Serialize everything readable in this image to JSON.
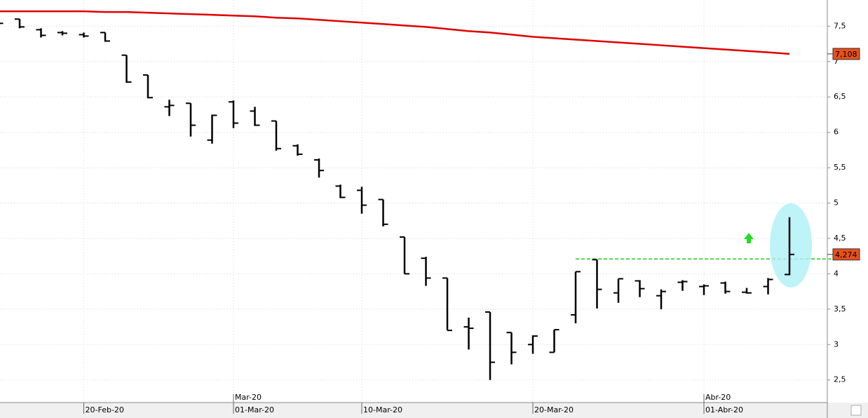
{
  "chart_data": {
    "type": "ohlc",
    "categories": [
      null,
      null,
      null,
      null,
      "20-Feb-20",
      null,
      null,
      null,
      null,
      null,
      null,
      "01-Mar-20",
      null,
      null,
      null,
      null,
      null,
      "10-Mar-20",
      null,
      null,
      null,
      null,
      null,
      null,
      null,
      "20-Mar-20",
      null,
      null,
      null,
      null,
      null,
      null,
      null,
      "01-Abr-20",
      null,
      null,
      null,
      null
    ],
    "months": [
      null,
      null,
      null,
      null,
      null,
      null,
      null,
      null,
      null,
      null,
      null,
      "Mar-20",
      null,
      null,
      null,
      null,
      null,
      null,
      null,
      null,
      null,
      null,
      null,
      null,
      null,
      null,
      null,
      null,
      null,
      null,
      null,
      null,
      null,
      "Abr-20",
      null,
      null,
      null,
      null
    ],
    "open": [
      7.55,
      7.6,
      7.45,
      7.41,
      7.38,
      7.41,
      7.09,
      6.81,
      6.36,
      6.41,
      5.89,
      6.43,
      6.3,
      6.16,
      5.81,
      5.61,
      5.24,
      5.18,
      5.05,
      4.52,
      4.22,
      3.94,
      3.25,
      3.46,
      3.17,
      3.0,
      2.89,
      3.42,
      4.2,
      3.73,
      3.9,
      3.69,
      3.88,
      3.82,
      3.87,
      3.74,
      3.82,
      3.99
    ],
    "high": [
      7.58,
      7.6,
      7.47,
      7.43,
      7.41,
      7.41,
      7.09,
      6.81,
      6.46,
      6.41,
      6.25,
      6.45,
      6.36,
      6.16,
      5.83,
      5.63,
      5.26,
      5.23,
      5.05,
      4.52,
      4.24,
      3.94,
      3.38,
      3.46,
      3.17,
      3.13,
      3.21,
      4.03,
      4.2,
      3.93,
      3.91,
      3.78,
      3.91,
      3.85,
      3.89,
      3.8,
      3.94,
      4.8
    ],
    "low": [
      7.52,
      7.47,
      7.34,
      7.37,
      7.34,
      7.28,
      6.7,
      6.48,
      6.23,
      5.94,
      5.84,
      6.06,
      6.09,
      5.74,
      5.67,
      5.36,
      5.07,
      4.85,
      4.67,
      4.0,
      3.83,
      3.2,
      2.93,
      2.5,
      2.72,
      2.87,
      2.89,
      3.3,
      3.51,
      3.59,
      3.67,
      3.5,
      3.76,
      3.7,
      3.72,
      3.72,
      3.71,
      3.98
    ],
    "close": [
      7.54,
      7.49,
      7.37,
      7.4,
      7.36,
      7.29,
      6.71,
      6.49,
      6.38,
      6.1,
      6.24,
      6.13,
      6.1,
      5.77,
      5.69,
      5.46,
      5.08,
      4.97,
      4.7,
      4.0,
      3.94,
      3.2,
      3.23,
      2.75,
      2.89,
      3.12,
      3.21,
      4.03,
      3.78,
      3.93,
      3.79,
      3.75,
      3.89,
      3.83,
      3.75,
      3.73,
      3.92,
      4.274
    ],
    "color": "#000000",
    "ma": {
      "color": "#e00000",
      "values": [
        7.71,
        7.71,
        7.71,
        7.71,
        7.71,
        7.7,
        7.7,
        7.69,
        7.68,
        7.67,
        7.66,
        7.65,
        7.64,
        7.62,
        7.61,
        7.59,
        7.57,
        7.55,
        7.53,
        7.51,
        7.49,
        7.46,
        7.43,
        7.41,
        7.38,
        7.35,
        7.33,
        7.31,
        7.29,
        7.27,
        7.25,
        7.23,
        7.21,
        7.19,
        7.17,
        7.15,
        7.13,
        7.108
      ]
    },
    "last_labels": {
      "ma": "7,108",
      "close": "4,274"
    },
    "level": {
      "value": 4.21,
      "color": "#22cc22"
    },
    "ylim": [
      2.18,
      7.87
    ],
    "yticks": [
      {
        "value": 2.5,
        "label": "2,5"
      },
      3,
      {
        "value": 3.5,
        "label": "3,5"
      },
      4,
      {
        "value": 4.5,
        "label": "4,5"
      },
      5,
      {
        "value": 5.5,
        "label": "5,5"
      },
      6,
      {
        "value": 6.5,
        "label": "6,5"
      },
      7,
      {
        "value": 7.5,
        "label": "7,5"
      }
    ],
    "grid": true
  }
}
